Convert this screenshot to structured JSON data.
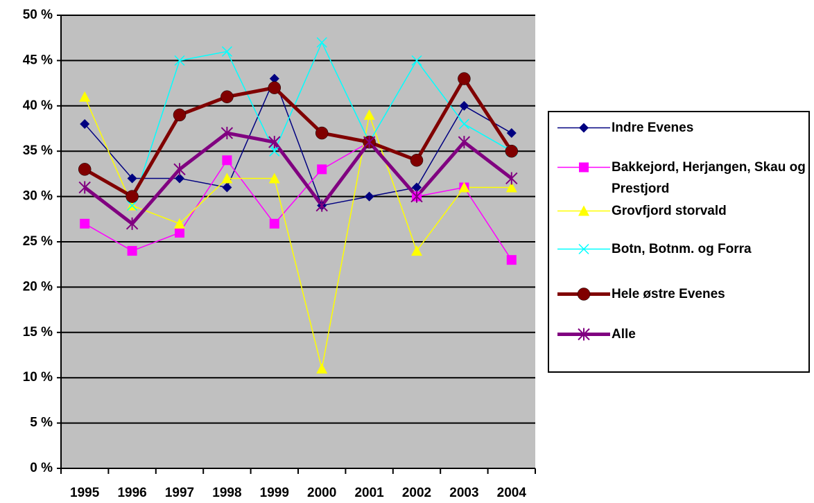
{
  "chart_data": {
    "type": "line",
    "categories": [
      "1995",
      "1996",
      "1997",
      "1998",
      "1999",
      "2000",
      "2001",
      "2002",
      "2003",
      "2004"
    ],
    "series": [
      {
        "name": "Indre Evenes",
        "color": "#000080",
        "marker": "diamond",
        "values": [
          38,
          32,
          32,
          31,
          43,
          29,
          30,
          31,
          40,
          37
        ]
      },
      {
        "name": "Bakkejord, Herjangen, Skau og Prestjord",
        "color": "#FF00FF",
        "marker": "square",
        "values": [
          27,
          24,
          26,
          34,
          27,
          33,
          36,
          30,
          31,
          23
        ]
      },
      {
        "name": "Grovfjord storvald",
        "color": "#FFFF00",
        "marker": "triangle",
        "values": [
          41,
          29,
          27,
          32,
          32,
          11,
          39,
          24,
          31,
          31
        ]
      },
      {
        "name": "Botn, Botnm. og Forra",
        "color": "#00FFFF",
        "marker": "x",
        "values": [
          null,
          29,
          45,
          46,
          35,
          47,
          36,
          45,
          38,
          35
        ]
      },
      {
        "name": "Hele østre Evenes",
        "color": "#800000",
        "marker": "circle",
        "values": [
          33,
          30,
          39,
          41,
          42,
          37,
          36,
          34,
          43,
          35
        ]
      },
      {
        "name": "Alle",
        "color": "#800080",
        "marker": "asterisk",
        "values": [
          31,
          27,
          33,
          37,
          36,
          29,
          36,
          30,
          36,
          32
        ]
      }
    ],
    "ylim": [
      0,
      50
    ],
    "yticks": [
      {
        "value": 0,
        "label": "0 %"
      },
      {
        "value": 5,
        "label": "5 %"
      },
      {
        "value": 10,
        "label": "10 %"
      },
      {
        "value": 15,
        "label": "15 %"
      },
      {
        "value": 20,
        "label": "20 %"
      },
      {
        "value": 25,
        "label": "25 %"
      },
      {
        "value": 30,
        "label": "30 %"
      },
      {
        "value": 35,
        "label": "35 %"
      },
      {
        "value": 40,
        "label": "40 %"
      },
      {
        "value": 45,
        "label": "45 %"
      },
      {
        "value": 50,
        "label": "50 %"
      }
    ],
    "grid": true,
    "legend": "right"
  }
}
